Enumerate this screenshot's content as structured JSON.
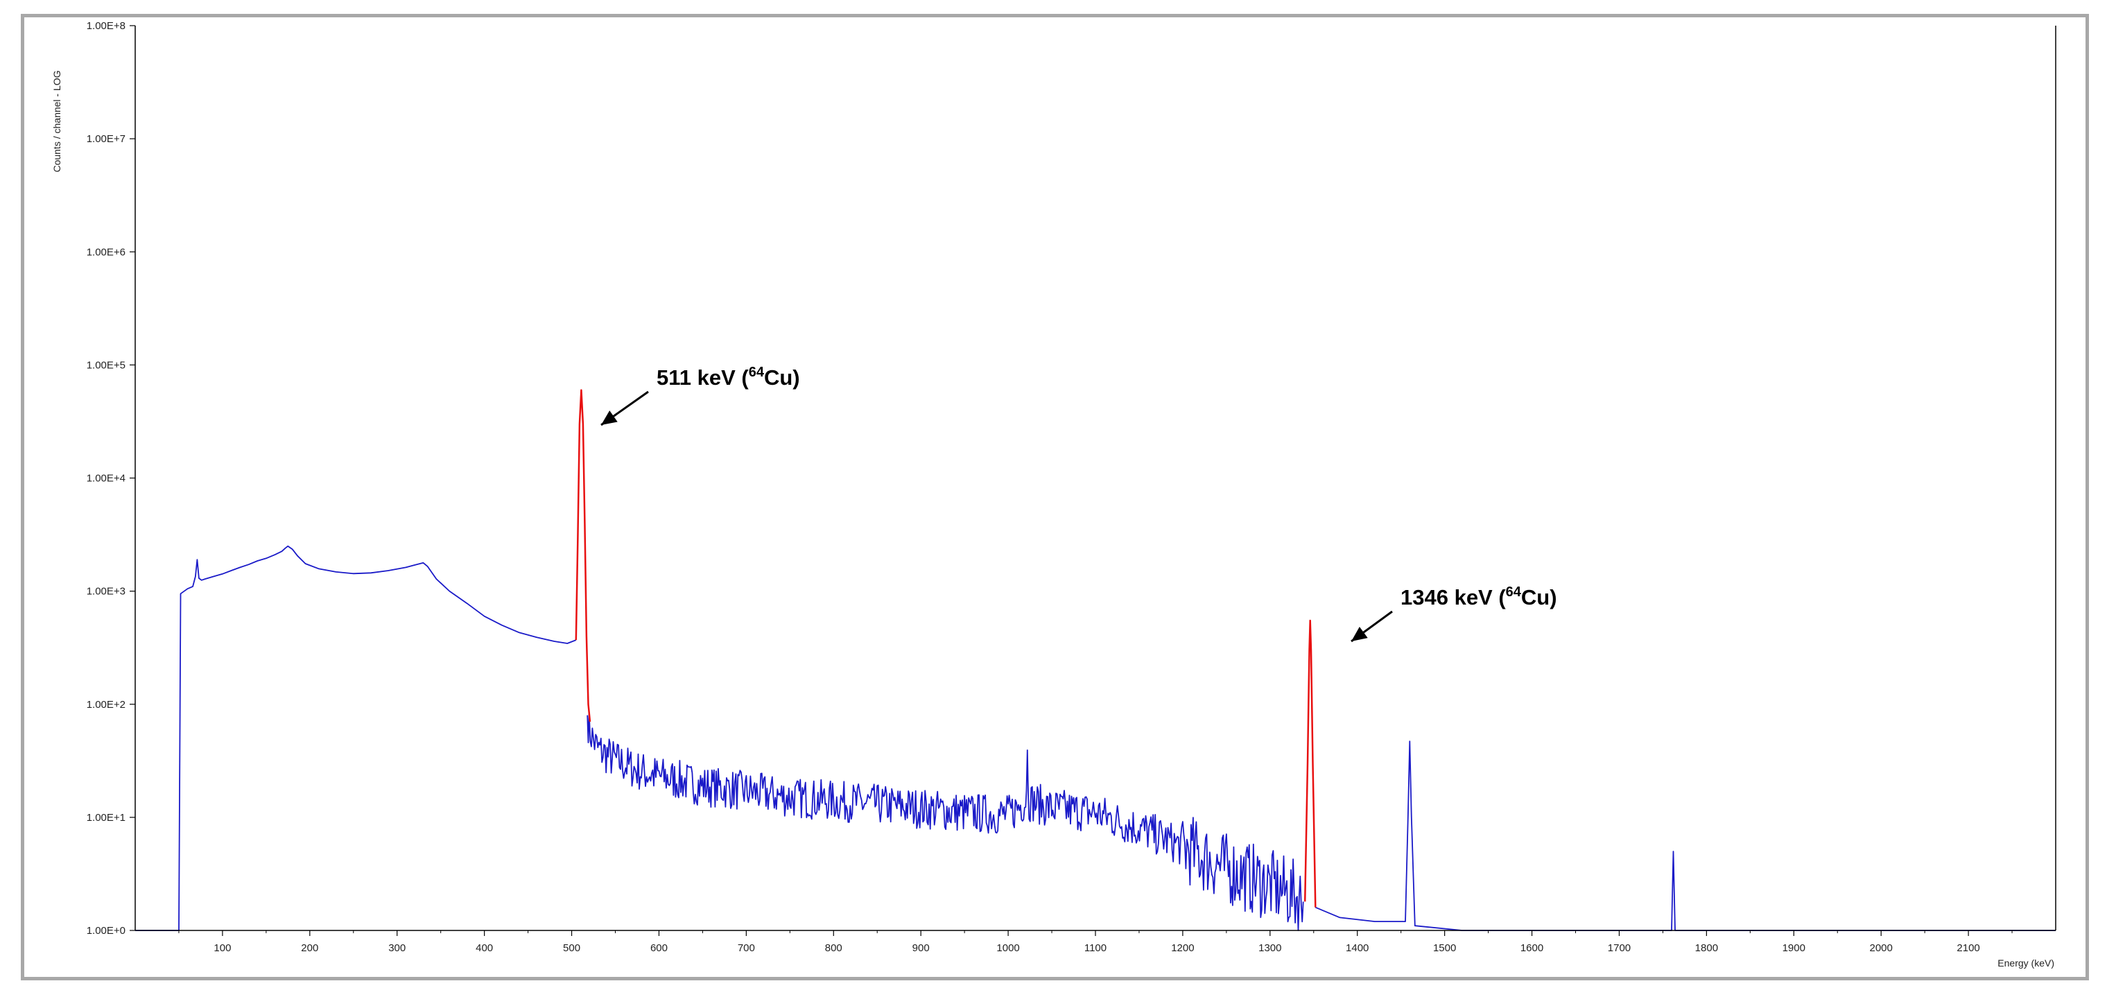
{
  "chart_data": {
    "type": "line",
    "title": "",
    "xlabel": "Energy (keV)",
    "ylabel": "Counts / channel - LOG",
    "xlim": [
      0,
      2200
    ],
    "ylim": [
      1,
      100000000
    ],
    "y_scale": "log",
    "grid": false,
    "x_ticks": [
      "100",
      "200",
      "300",
      "400",
      "500",
      "600",
      "700",
      "800",
      "900",
      "1000",
      "1100",
      "1200",
      "1300",
      "1400",
      "1500",
      "1600",
      "1700",
      "1800",
      "1900",
      "2000",
      "2100"
    ],
    "x_tick_values": [
      100,
      200,
      300,
      400,
      500,
      600,
      700,
      800,
      900,
      1000,
      1100,
      1200,
      1300,
      1400,
      1500,
      1600,
      1700,
      1800,
      1900,
      2000,
      2100
    ],
    "y_ticks": [
      "1.00E+0",
      "1.00E+1",
      "1.00E+2",
      "1.00E+3",
      "1.00E+4",
      "1.00E+5",
      "1.00E+6",
      "1.00E+7",
      "1.00E+8"
    ],
    "y_tick_values": [
      1,
      10,
      100,
      1000,
      10000,
      100000,
      1000000,
      10000000,
      100000000
    ],
    "colors": {
      "spectrum": "#1a1ac8",
      "peak": "#e81010",
      "axis": "#000000",
      "arrow": "#000000"
    },
    "series": [
      {
        "color": "#1a1ac8",
        "points": [
          [
            0,
            1
          ],
          [
            45,
            1
          ],
          [
            50,
            1
          ],
          [
            52,
            950
          ],
          [
            60,
            1050
          ],
          [
            66,
            1100
          ],
          [
            69,
            1350
          ],
          [
            71,
            1900
          ],
          [
            73,
            1300
          ],
          [
            76,
            1250
          ],
          [
            80,
            1280
          ],
          [
            90,
            1350
          ],
          [
            100,
            1420
          ],
          [
            110,
            1520
          ],
          [
            120,
            1620
          ],
          [
            130,
            1720
          ],
          [
            140,
            1850
          ],
          [
            150,
            1950
          ],
          [
            160,
            2100
          ],
          [
            168,
            2250
          ],
          [
            172,
            2400
          ],
          [
            175,
            2500
          ],
          [
            180,
            2350
          ],
          [
            186,
            2050
          ],
          [
            195,
            1750
          ],
          [
            210,
            1580
          ],
          [
            230,
            1480
          ],
          [
            250,
            1430
          ],
          [
            270,
            1450
          ],
          [
            290,
            1520
          ],
          [
            310,
            1620
          ],
          [
            320,
            1700
          ],
          [
            330,
            1780
          ],
          [
            335,
            1650
          ],
          [
            345,
            1280
          ],
          [
            360,
            1000
          ],
          [
            380,
            780
          ],
          [
            400,
            600
          ],
          [
            420,
            500
          ],
          [
            440,
            430
          ],
          [
            460,
            390
          ],
          [
            480,
            360
          ],
          [
            495,
            345
          ],
          [
            505,
            370
          ]
        ]
      },
      {
        "color": "#1a1ac8",
        "points": [
          [
            518,
            80
          ],
          [
            520,
            60
          ],
          [
            525,
            48
          ],
          [
            530,
            40
          ],
          [
            550,
            32
          ],
          [
            575,
            26
          ],
          [
            600,
            23
          ],
          [
            625,
            21
          ],
          [
            650,
            19
          ],
          [
            700,
            17
          ],
          [
            750,
            15
          ],
          [
            800,
            14
          ],
          [
            850,
            13
          ],
          [
            900,
            12
          ],
          [
            950,
            11
          ],
          [
            1000,
            10.5
          ],
          [
            1020,
            14
          ],
          [
            1022,
            35
          ],
          [
            1024,
            14
          ],
          [
            1050,
            12
          ],
          [
            1100,
            11
          ],
          [
            1130,
            9
          ],
          [
            1160,
            7.5
          ],
          [
            1200,
            5.5
          ],
          [
            1250,
            3.5
          ],
          [
            1300,
            2.5
          ],
          [
            1330,
            2
          ],
          [
            1338,
            1.8
          ]
        ]
      },
      {
        "color": "#1a1ac8",
        "points": [
          [
            1352,
            1.6
          ],
          [
            1380,
            1.3
          ],
          [
            1420,
            1.2
          ],
          [
            1455,
            1.2
          ],
          [
            1458,
            10
          ],
          [
            1460,
            47
          ],
          [
            1462,
            10
          ],
          [
            1466,
            1.1
          ],
          [
            1520,
            1
          ],
          [
            1600,
            1
          ],
          [
            1760,
            1
          ],
          [
            1762,
            5
          ],
          [
            1764,
            1
          ],
          [
            2200,
            1
          ]
        ]
      },
      {
        "color": "#e81010",
        "points": [
          [
            505,
            370
          ],
          [
            507,
            3000
          ],
          [
            509,
            30000
          ],
          [
            511,
            60000
          ],
          [
            513,
            30000
          ],
          [
            515,
            4000
          ],
          [
            517,
            400
          ],
          [
            519,
            100
          ],
          [
            521,
            70
          ]
        ]
      },
      {
        "color": "#e81010",
        "points": [
          [
            1340,
            1.8
          ],
          [
            1343,
            30
          ],
          [
            1345,
            300
          ],
          [
            1346,
            550
          ],
          [
            1347,
            300
          ],
          [
            1349,
            30
          ],
          [
            1352,
            1.6
          ]
        ]
      }
    ],
    "annotations": [
      {
        "text": "511 keV  (",
        "superscript": "64",
        "suffix": "Cu)",
        "x": 511,
        "y": 60000
      },
      {
        "text": "1346 keV  (",
        "superscript": "64",
        "suffix": "Cu)",
        "x": 1346,
        "y": 550
      }
    ]
  }
}
